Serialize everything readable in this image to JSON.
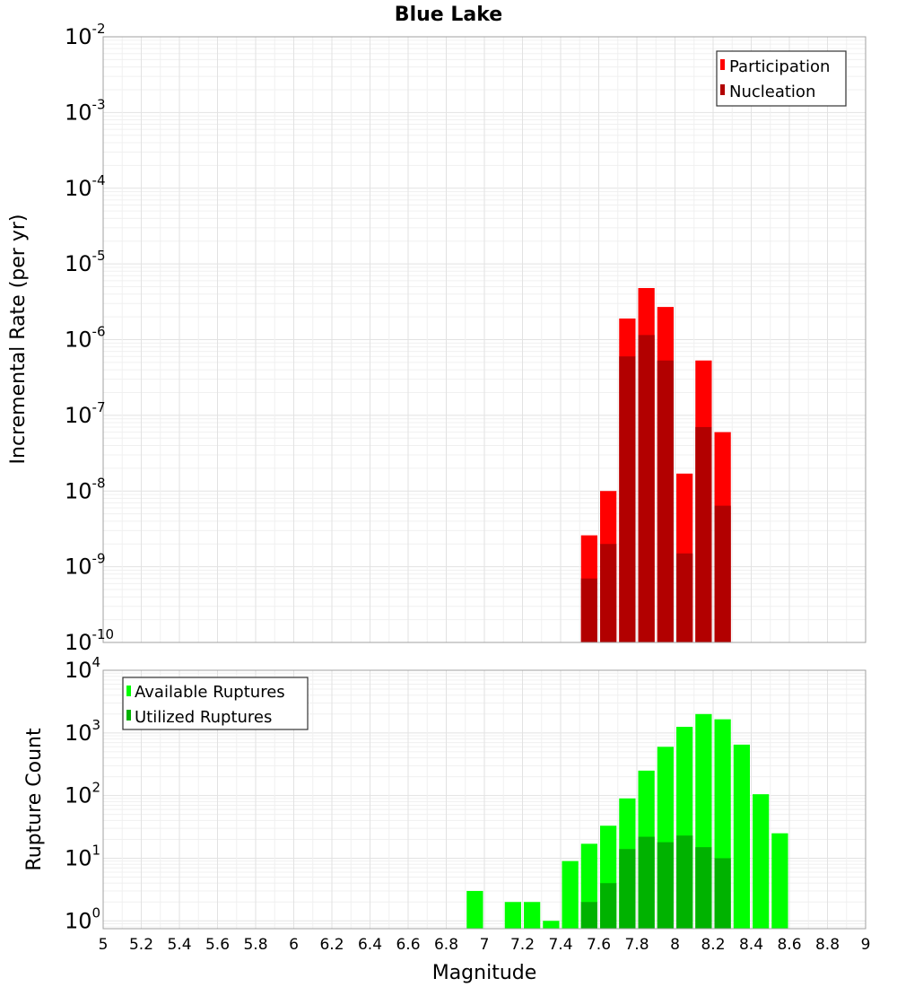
{
  "chart_data": [
    {
      "type": "bar",
      "title": "Blue Lake",
      "xlabel": "",
      "ylabel": "Incremental Rate (per yr)",
      "xlim": [
        5,
        9
      ],
      "ylim": [
        1e-10,
        0.01
      ],
      "yscale": "log",
      "bar_width": 0.1,
      "grid": true,
      "legend_position": "top-right",
      "y_tick_exponents": [
        -10,
        -9,
        -8,
        -7,
        -6,
        -5,
        -4,
        -3,
        -2
      ],
      "series": [
        {
          "name": "Participation",
          "color": "#ff0000",
          "x": [
            7.55,
            7.65,
            7.75,
            7.85,
            7.95,
            8.05,
            8.15,
            8.25
          ],
          "values": [
            2.6e-09,
            1e-08,
            1.9e-06,
            4.8e-06,
            2.7e-06,
            1.7e-08,
            5.3e-07,
            6e-08
          ]
        },
        {
          "name": "Nucleation",
          "color": "#b20000",
          "x": [
            7.55,
            7.65,
            7.75,
            7.85,
            7.95,
            8.05,
            8.15,
            8.25
          ],
          "values": [
            7e-10,
            2e-09,
            6e-07,
            1.15e-06,
            5.3e-07,
            1.5e-09,
            7e-08,
            6.4e-09
          ]
        }
      ]
    },
    {
      "type": "bar",
      "title": "",
      "xlabel": "Magnitude",
      "ylabel": "Rupture Count",
      "xlim": [
        5,
        9
      ],
      "ylim": [
        0.75,
        10000
      ],
      "yscale": "log",
      "bar_width": 0.1,
      "grid": true,
      "legend_position": "top-left",
      "x_ticks": [
        "5",
        "5.2",
        "5.4",
        "5.6",
        "5.8",
        "6",
        "6.2",
        "6.4",
        "6.6",
        "6.8",
        "7",
        "7.2",
        "7.4",
        "7.6",
        "7.8",
        "8",
        "8.2",
        "8.4",
        "8.6",
        "8.8",
        "9"
      ],
      "y_tick_exponents": [
        0,
        1,
        2,
        3,
        4
      ],
      "series": [
        {
          "name": "Available Ruptures",
          "color": "#00ff00",
          "x": [
            6.95,
            7.15,
            7.25,
            7.35,
            7.45,
            7.55,
            7.65,
            7.75,
            7.85,
            7.95,
            8.05,
            8.15,
            8.25,
            8.35,
            8.45,
            8.55
          ],
          "values": [
            3,
            2,
            2,
            1,
            9,
            17,
            33,
            90,
            250,
            600,
            1250,
            2000,
            1650,
            650,
            105,
            25
          ]
        },
        {
          "name": "Utilized Ruptures",
          "color": "#00b200",
          "x": [
            7.55,
            7.65,
            7.75,
            7.85,
            7.95,
            8.05,
            8.15,
            8.25
          ],
          "values": [
            2,
            4,
            14,
            22,
            18,
            23,
            15,
            10
          ]
        }
      ]
    }
  ]
}
